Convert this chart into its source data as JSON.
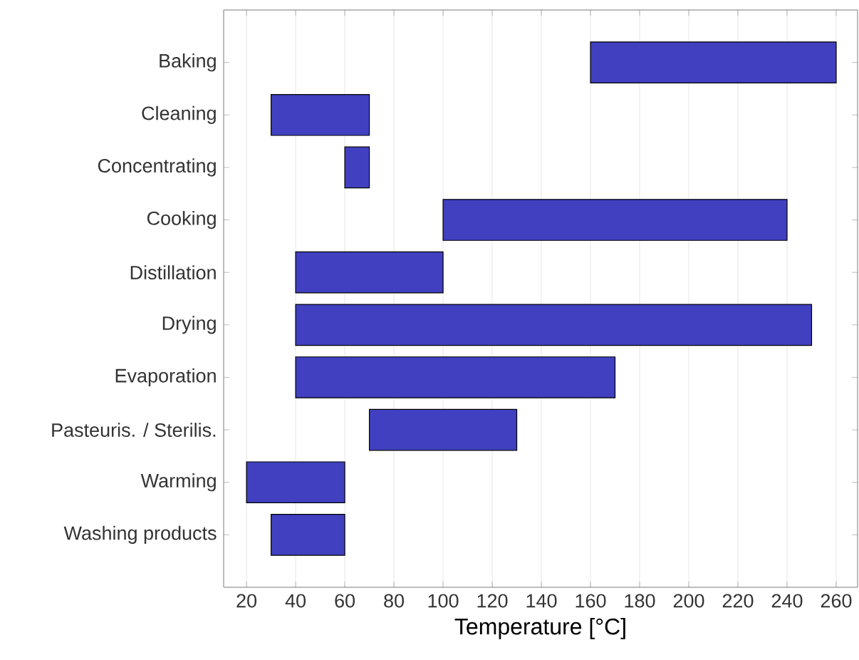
{
  "chart_data": {
    "type": "bar",
    "orientation": "horizontal",
    "categories": [
      "Baking",
      "Cleaning",
      "Concentrating",
      "Cooking",
      "Distillation",
      "Drying",
      "Evaporation",
      "Pasteuris. / Sterilis.",
      "Warming",
      "Washing products"
    ],
    "base": [
      160,
      30,
      60,
      100,
      40,
      40,
      40,
      70,
      20,
      30
    ],
    "values": [
      100,
      40,
      10,
      140,
      60,
      210,
      130,
      60,
      40,
      30
    ],
    "color": "#4040c0",
    "xlabel": "Temperature [°C]",
    "xlim": [
      10.7,
      268.7
    ],
    "xticks": [
      20,
      40,
      60,
      80,
      100,
      120,
      140,
      160,
      180,
      200,
      220,
      240,
      260
    ],
    "grid": "x"
  }
}
